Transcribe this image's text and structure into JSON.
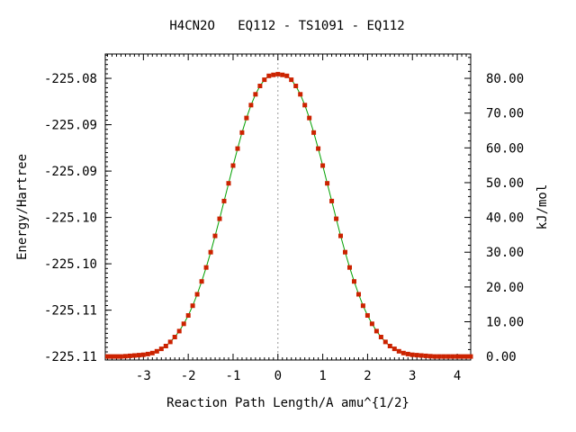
{
  "chart_data": {
    "type": "line",
    "title": "H4CN2O   EQ112 - TS1091 - EQ112",
    "xlabel": "Reaction Path Length/A amu^{1/2}",
    "ylabel_left": "Energy/Hartree",
    "ylabel_right": "kJ/mol",
    "xlim": [
      -3.85,
      4.3
    ],
    "ylim_kj": [
      -1.0,
      87.0
    ],
    "x_ticks": [
      {
        "value": -3,
        "label": "-3"
      },
      {
        "value": -2,
        "label": "-2"
      },
      {
        "value": -1,
        "label": "-1"
      },
      {
        "value": 0,
        "label": "0"
      },
      {
        "value": 1,
        "label": "1"
      },
      {
        "value": 2,
        "label": "2"
      },
      {
        "value": 3,
        "label": "3"
      },
      {
        "value": 4,
        "label": "4"
      }
    ],
    "y_ticks_left": [
      {
        "value_kj": 0,
        "label": "-225.11"
      },
      {
        "value_kj": 13.33,
        "label": "-225.11"
      },
      {
        "value_kj": 26.67,
        "label": "-225.10"
      },
      {
        "value_kj": 40.0,
        "label": "-225.10"
      },
      {
        "value_kj": 53.33,
        "label": "-225.09"
      },
      {
        "value_kj": 66.67,
        "label": "-225.09"
      },
      {
        "value_kj": 80.0,
        "label": "-225.08"
      }
    ],
    "y_ticks_right": [
      {
        "value": 0,
        "label": "0.00"
      },
      {
        "value": 10,
        "label": "10.00"
      },
      {
        "value": 20,
        "label": "20.00"
      },
      {
        "value": 30,
        "label": "30.00"
      },
      {
        "value": 40,
        "label": "40.00"
      },
      {
        "value": 50,
        "label": "50.00"
      },
      {
        "value": 60,
        "label": "60.00"
      },
      {
        "value": 70,
        "label": "70.00"
      },
      {
        "value": 80,
        "label": "80.00"
      }
    ],
    "ts_marker_x": 0,
    "series": [
      {
        "line_color": "#00a000",
        "marker_color": "#cc2200",
        "x": [
          -3.8,
          -3.7,
          -3.6,
          -3.5,
          -3.4,
          -3.3,
          -3.2,
          -3.1,
          -3.0,
          -2.9,
          -2.8,
          -2.7,
          -2.6,
          -2.5,
          -2.4,
          -2.3,
          -2.2,
          -2.1,
          -2.0,
          -1.9,
          -1.8,
          -1.7,
          -1.6,
          -1.5,
          -1.4,
          -1.3,
          -1.2,
          -1.1,
          -1.0,
          -0.9,
          -0.8,
          -0.7,
          -0.6,
          -0.5,
          -0.4,
          -0.3,
          -0.2,
          -0.1,
          0.0,
          0.1,
          0.2,
          0.3,
          0.4,
          0.5,
          0.6,
          0.7,
          0.8,
          0.9,
          1.0,
          1.1,
          1.2,
          1.3,
          1.4,
          1.5,
          1.6,
          1.7,
          1.8,
          1.9,
          2.0,
          2.1,
          2.2,
          2.3,
          2.4,
          2.5,
          2.6,
          2.7,
          2.8,
          2.9,
          3.0,
          3.1,
          3.2,
          3.3,
          3.4,
          3.5,
          3.6,
          3.7,
          3.8,
          3.9,
          4.0,
          4.1,
          4.2,
          4.3
        ],
        "y": [
          0.0,
          0.0,
          0.0,
          0.0,
          0.1,
          0.2,
          0.3,
          0.4,
          0.5,
          0.7,
          1.0,
          1.5,
          2.2,
          3.0,
          4.2,
          5.6,
          7.3,
          9.4,
          11.8,
          14.6,
          17.9,
          21.6,
          25.6,
          30.0,
          34.7,
          39.6,
          44.7,
          49.8,
          54.9,
          59.8,
          64.4,
          68.6,
          72.3,
          75.4,
          77.8,
          79.6,
          80.7,
          81.0,
          81.2,
          81.0,
          80.7,
          79.6,
          77.8,
          75.4,
          72.3,
          68.6,
          64.4,
          59.8,
          54.9,
          49.8,
          44.7,
          39.6,
          34.7,
          30.0,
          25.6,
          21.6,
          17.9,
          14.6,
          11.8,
          9.4,
          7.3,
          5.6,
          4.2,
          3.0,
          2.2,
          1.5,
          1.0,
          0.7,
          0.5,
          0.4,
          0.3,
          0.2,
          0.1,
          0.0,
          0.0,
          0.0,
          0.0,
          0.0,
          0.0,
          0.0,
          0.0,
          0.0
        ]
      }
    ]
  }
}
